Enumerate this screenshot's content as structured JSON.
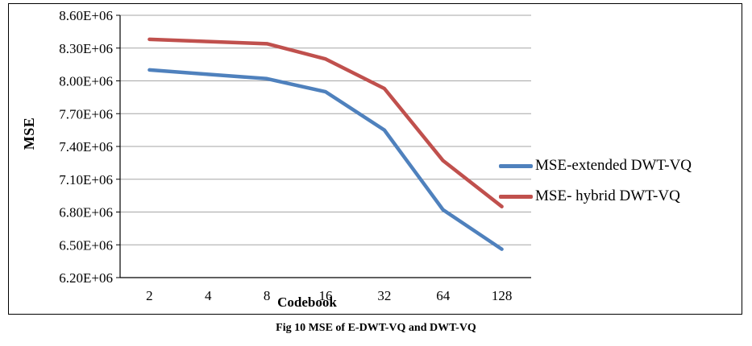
{
  "figure": {
    "caption": "Fig 10 MSE of E-DWT-VQ and DWT-VQ"
  },
  "chart_data": {
    "type": "line",
    "title": "",
    "xlabel": "Codebook",
    "ylabel": "MSE",
    "categories": [
      "2",
      "4",
      "8",
      "16",
      "32",
      "64",
      "128"
    ],
    "y_ticks": [
      "6.20E+06",
      "6.50E+06",
      "6.80E+06",
      "7.10E+06",
      "7.40E+06",
      "7.70E+06",
      "8.00E+06",
      "8.30E+06",
      "8.60E+06"
    ],
    "ylim": [
      6200000,
      8600000
    ],
    "grid": true,
    "legend_position": "right",
    "gridline_color": "#A6A6A6",
    "axis_color": "#000000",
    "series": [
      {
        "name": "MSE-extended DWT-VQ",
        "color": "#4F81BD",
        "values": [
          8100000,
          8060000,
          8020000,
          7900000,
          7550000,
          6820000,
          6460000
        ]
      },
      {
        "name": "MSE- hybrid DWT-VQ",
        "color": "#C0504D",
        "values": [
          8380000,
          8360000,
          8340000,
          8200000,
          7930000,
          7270000,
          6850000
        ]
      }
    ]
  }
}
